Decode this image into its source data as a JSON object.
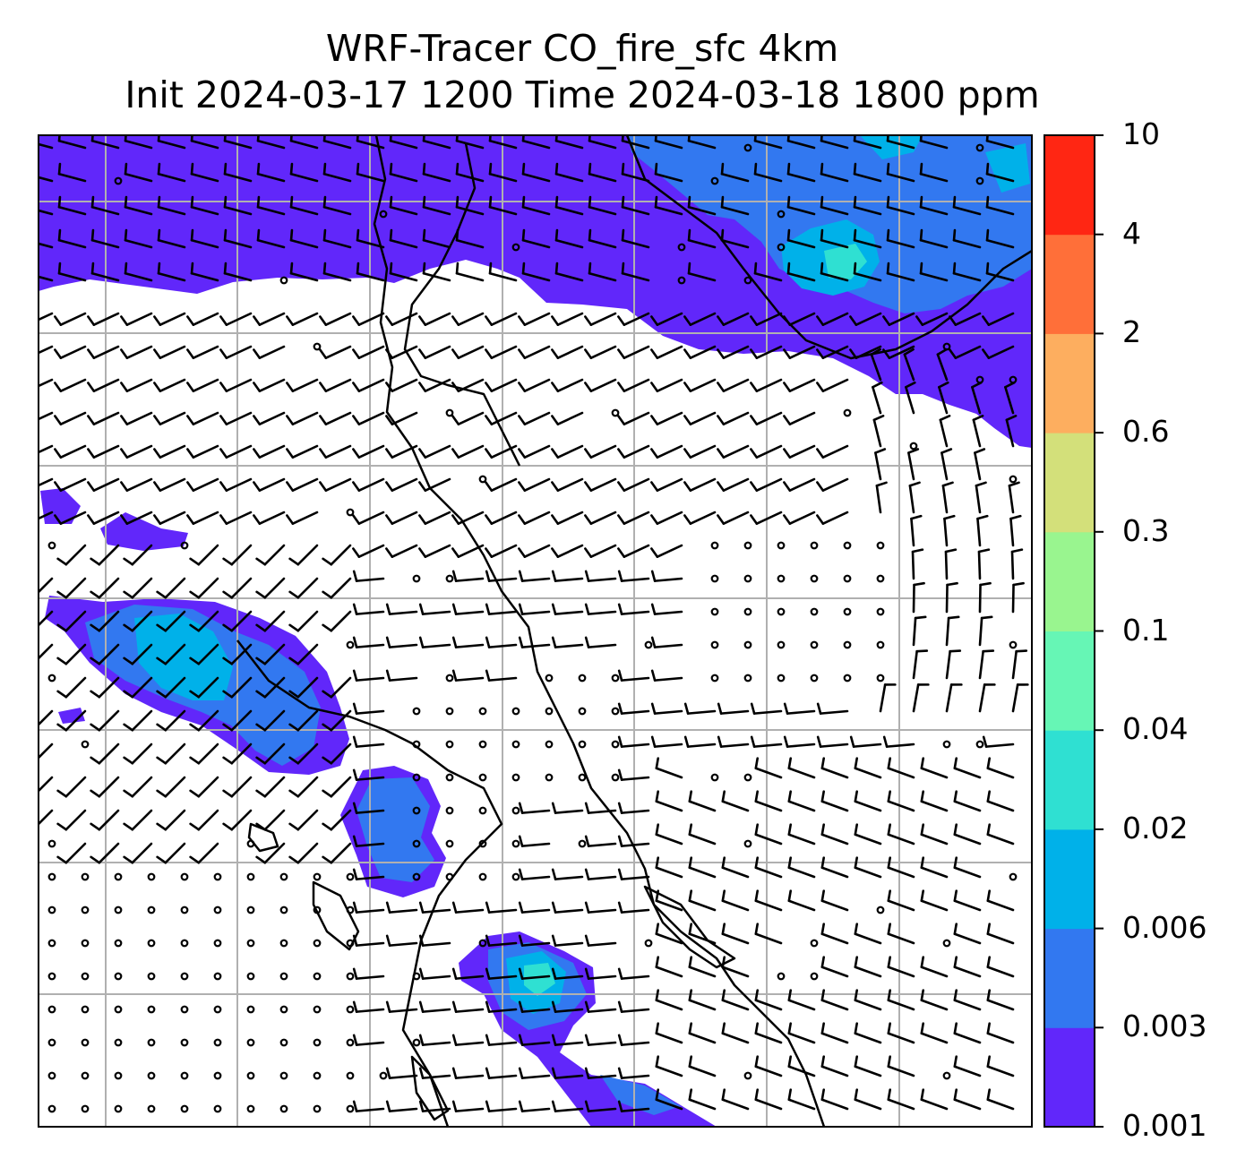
{
  "title": {
    "line1": "WRF-Tracer CO_fire_sfc 4km",
    "line2": "Init 2024-03-17 1200 Time 2024-03-18 1800 ppm"
  },
  "colorbar": {
    "levels": [
      "0.001",
      "0.003",
      "0.006",
      "0.02",
      "0.04",
      "0.1",
      "0.3",
      "0.6",
      "2",
      "4",
      "10"
    ],
    "colors": [
      "#6127fa",
      "#3278f0",
      "#00b1e9",
      "#2fe0d2",
      "#66f6b5",
      "#99f58f",
      "#d3e07a",
      "#fdae5f",
      "#ff6f39",
      "#ff2613"
    ]
  },
  "map": {
    "background": "#ffffff",
    "grid_color": "#b0b0b0",
    "coastline_color": "#000000",
    "barb_color": "#000000"
  }
}
